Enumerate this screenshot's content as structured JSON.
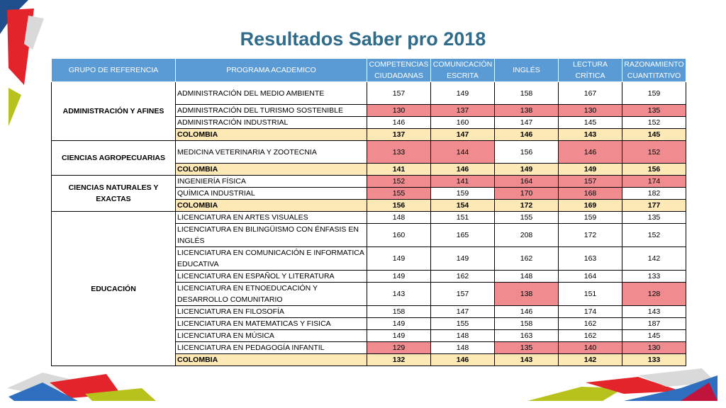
{
  "title": "Resultados Saber pro 2018",
  "colors": {
    "header": "#5b9bd5",
    "low": "#f08b8f",
    "colombia": "#fde9b6",
    "title": "#2f6b8a"
  },
  "headers": [
    "GRUPO DE REFERENCIA",
    "PROGRAMA ACADEMICO",
    "COMPETENCIAS CIUDADANAS",
    "COMUNICACIÓN ESCRITA",
    "INGLÉS",
    "LECTURA CRÍTICA",
    "RAZONAMIENTO CUANTITATIVO"
  ],
  "groups": [
    {
      "name": "ADMINISTRACIÓN Y AFINES",
      "rows": [
        {
          "programa": "ADMINISTRACIÓN DEL MEDIO AMBIENTE",
          "values": [
            "157",
            "149",
            "158",
            "167",
            "159"
          ],
          "low": [
            false,
            false,
            false,
            false,
            false
          ]
        },
        {
          "programa": "ADMINISTRACIÓN DEL TURISMO SOSTENIBLE",
          "values": [
            "130",
            "137",
            "138",
            "130",
            "135"
          ],
          "low": [
            true,
            true,
            true,
            true,
            true
          ]
        },
        {
          "programa": "ADMINISTRACIÓN INDUSTRIAL",
          "values": [
            "146",
            "160",
            "147",
            "145",
            "152"
          ],
          "low": [
            false,
            false,
            false,
            false,
            false
          ]
        },
        {
          "programa": "COLOMBIA",
          "values": [
            "137",
            "147",
            "146",
            "143",
            "145"
          ],
          "colombia": true
        }
      ]
    },
    {
      "name": "CIENCIAS AGROPECUARIAS",
      "rows": [
        {
          "programa": "MEDICINA VETERINARIA Y ZOOTECNIA",
          "values": [
            "133",
            "144",
            "156",
            "146",
            "152"
          ],
          "low": [
            true,
            true,
            false,
            true,
            true
          ]
        },
        {
          "programa": "COLOMBIA",
          "values": [
            "141",
            "146",
            "149",
            "149",
            "156"
          ],
          "colombia": true
        }
      ]
    },
    {
      "name": "CIENCIAS NATURALES Y EXACTAS",
      "rows": [
        {
          "programa": "INGENIERÍA FÍSICA",
          "values": [
            "152",
            "141",
            "164",
            "157",
            "174"
          ],
          "low": [
            true,
            true,
            true,
            true,
            true
          ]
        },
        {
          "programa": "QUÍMICA INDUSTRIAL",
          "values": [
            "155",
            "159",
            "170",
            "168",
            "182"
          ],
          "low": [
            true,
            false,
            true,
            true,
            false
          ]
        },
        {
          "programa": "COLOMBIA",
          "values": [
            "156",
            "154",
            "172",
            "169",
            "177"
          ],
          "colombia": true
        }
      ]
    },
    {
      "name": "EDUCACIÓN",
      "rows": [
        {
          "programa": "LICENCIATURA EN ARTES VISUALES",
          "values": [
            "148",
            "151",
            "155",
            "159",
            "135"
          ],
          "low": [
            false,
            false,
            false,
            false,
            false
          ]
        },
        {
          "programa": "LICENCIATURA EN BILINGÜISMO CON ÉNFASIS EN INGLÉS",
          "values": [
            "160",
            "165",
            "208",
            "172",
            "152"
          ],
          "low": [
            false,
            false,
            false,
            false,
            false
          ]
        },
        {
          "programa": "LICENCIATURA EN COMUNICACIÓN E INFORMATICA EDUCATIVA",
          "values": [
            "149",
            "149",
            "162",
            "163",
            "142"
          ],
          "low": [
            false,
            false,
            false,
            false,
            false
          ]
        },
        {
          "programa": "LICENCIATURA EN ESPAÑOL Y LITERATURA",
          "values": [
            "149",
            "162",
            "148",
            "164",
            "133"
          ],
          "low": [
            false,
            false,
            false,
            false,
            false
          ]
        },
        {
          "programa": "LICENCIATURA EN ETNOEDUCACIÓN Y DESARROLLO COMUNITARIO",
          "values": [
            "143",
            "157",
            "138",
            "151",
            "128"
          ],
          "low": [
            false,
            false,
            true,
            false,
            true
          ]
        },
        {
          "programa": "LICENCIATURA EN FILOSOFÍA",
          "values": [
            "158",
            "147",
            "146",
            "174",
            "143"
          ],
          "low": [
            false,
            false,
            false,
            false,
            false
          ]
        },
        {
          "programa": "LICENCIATURA EN MATEMATICAS Y FISICA",
          "values": [
            "149",
            "155",
            "158",
            "162",
            "187"
          ],
          "low": [
            false,
            false,
            false,
            false,
            false
          ]
        },
        {
          "programa": "LICENCIATURA EN MÚSICA",
          "values": [
            "149",
            "148",
            "163",
            "162",
            "145"
          ],
          "low": [
            false,
            false,
            false,
            false,
            false
          ]
        },
        {
          "programa": "LICENCIATURA EN PEDAGOGÍA INFANTIL",
          "values": [
            "129",
            "148",
            "135",
            "140",
            "130"
          ],
          "low": [
            true,
            false,
            true,
            true,
            true
          ]
        },
        {
          "programa": "COLOMBIA",
          "values": [
            "132",
            "146",
            "143",
            "142",
            "133"
          ],
          "colombia": true
        }
      ]
    }
  ]
}
